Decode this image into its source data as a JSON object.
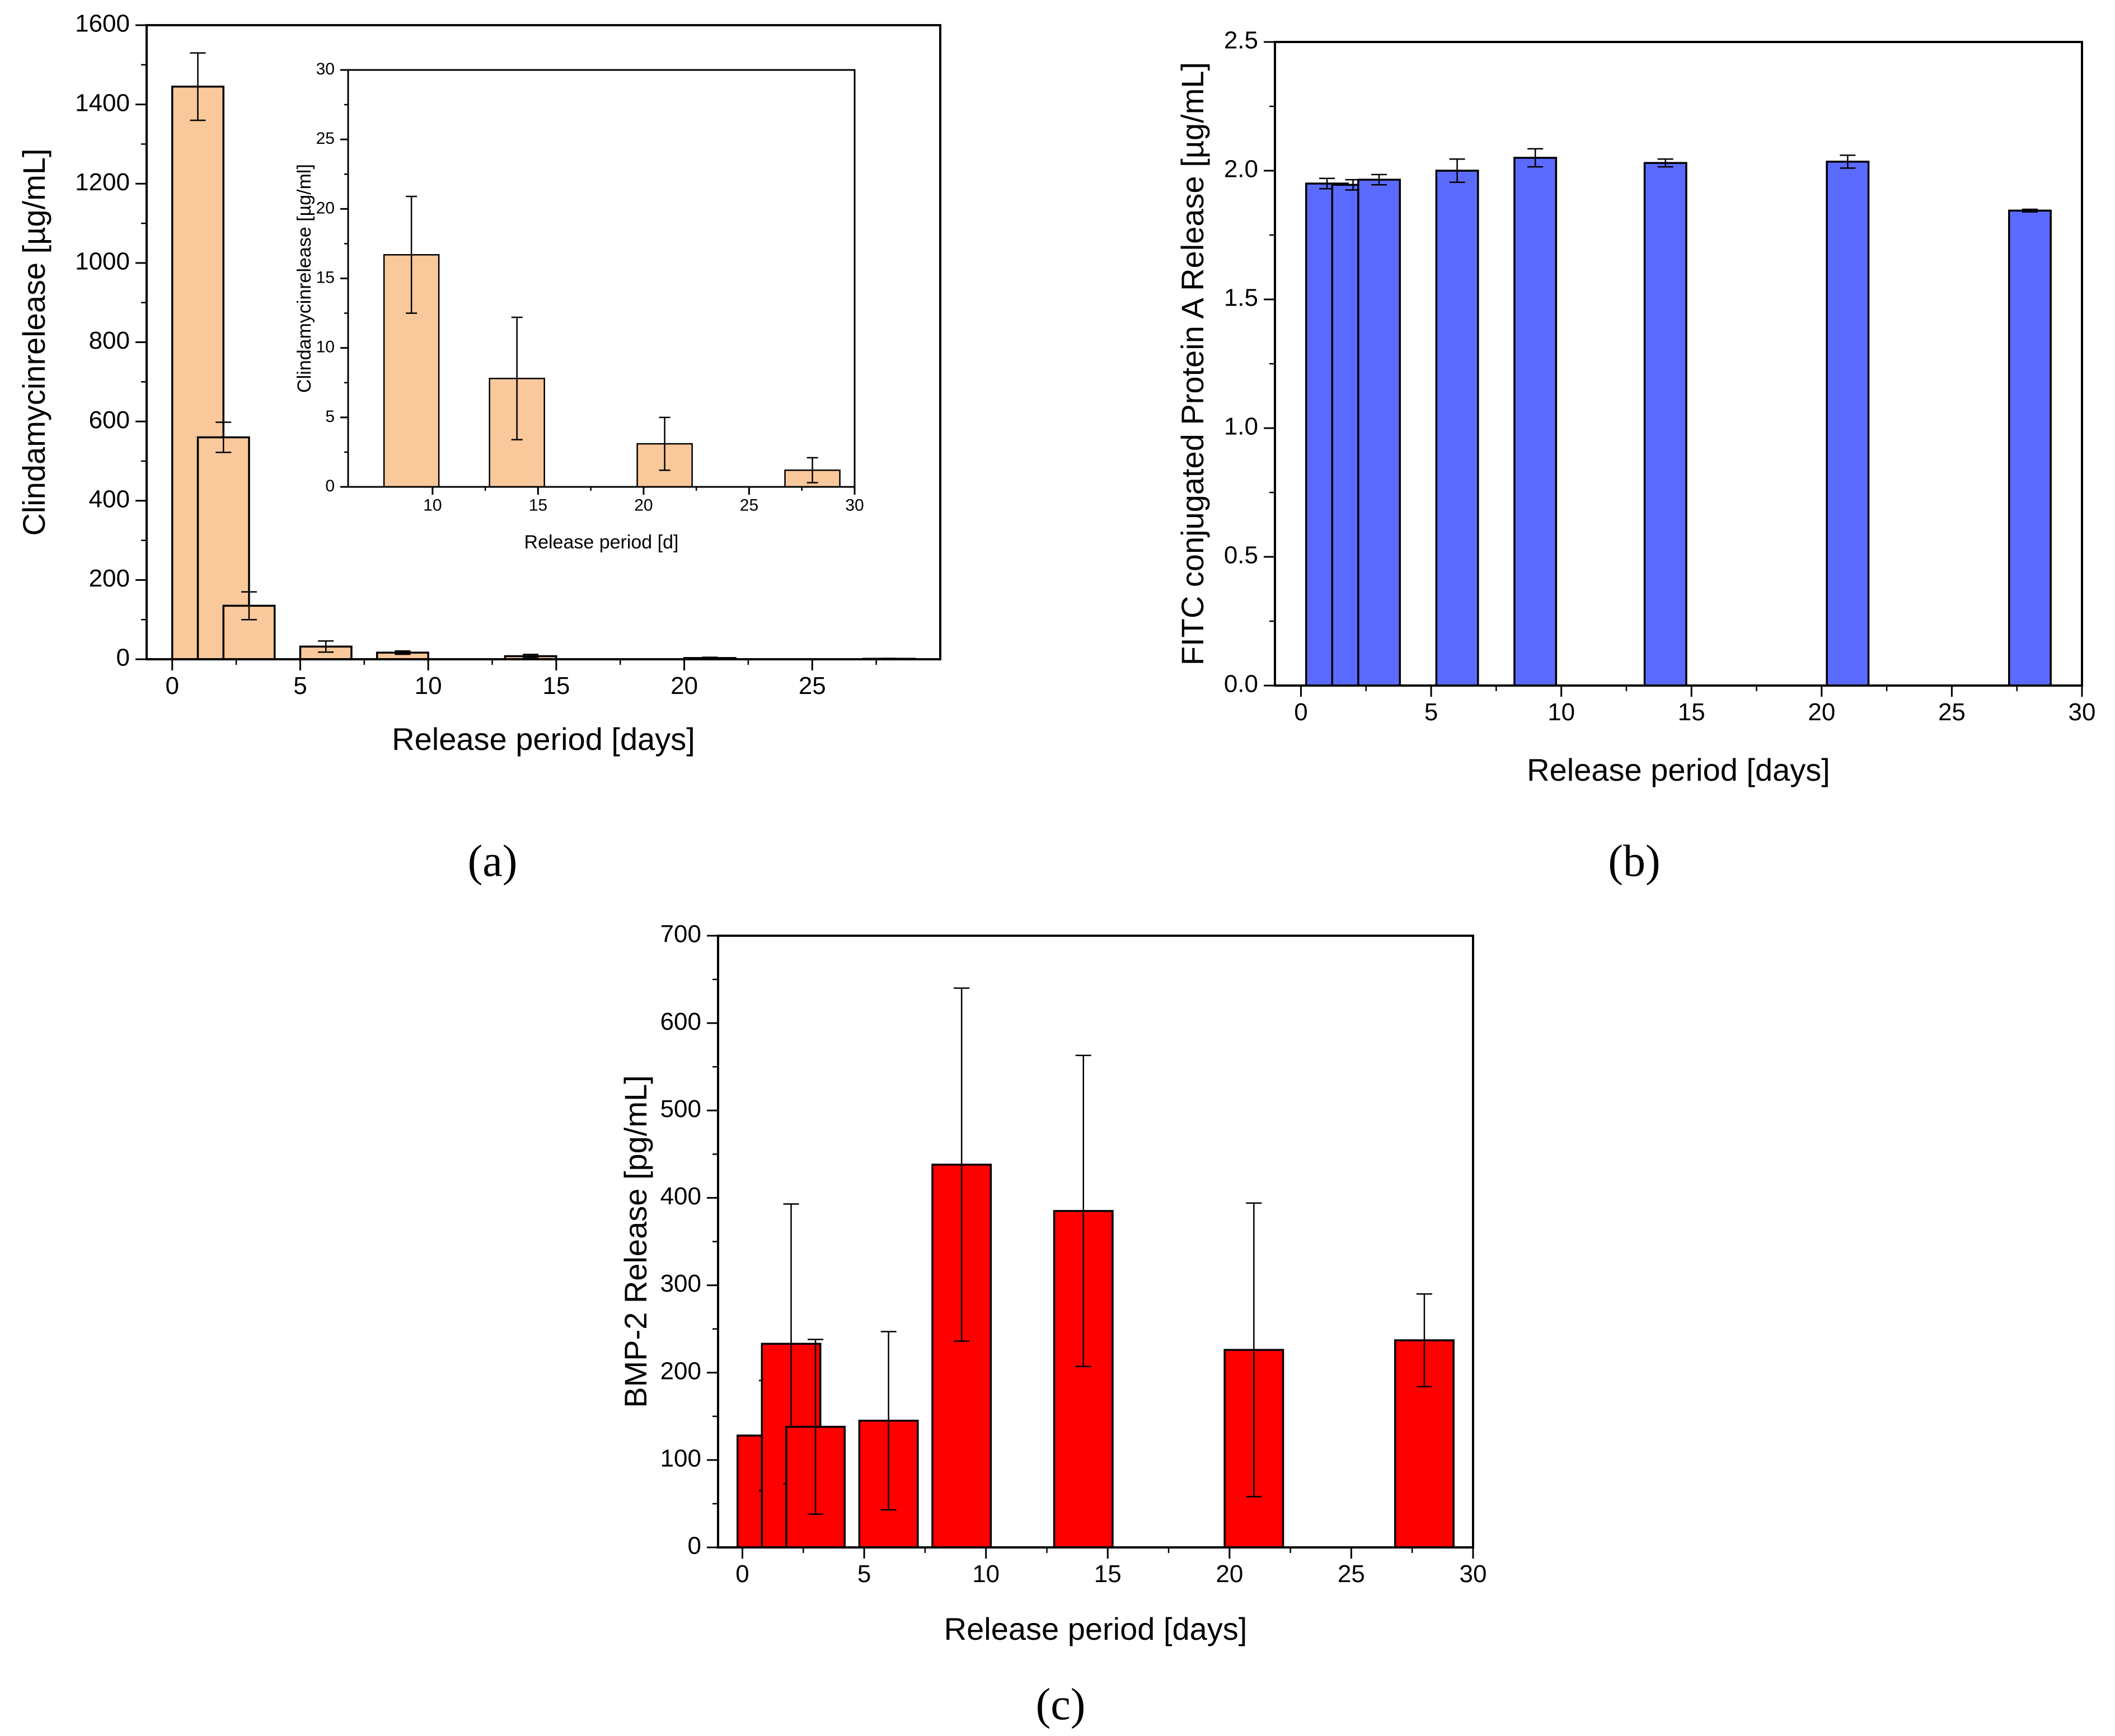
{
  "chart_data": [
    {
      "id": "a",
      "type": "bar",
      "panel_label": "(a)",
      "xlabel": "Release period [days]",
      "ylabel": "Clindamycinrelease [µg/mL]",
      "xlim": [
        -1,
        30
      ],
      "ylim": [
        0,
        1600
      ],
      "xticks": [
        0,
        5,
        10,
        15,
        20,
        25
      ],
      "yticks": [
        0,
        200,
        400,
        600,
        800,
        1000,
        1200,
        1400,
        1600
      ],
      "bar_color": "#F9C89B",
      "bars": [
        {
          "x": 1,
          "width": 2,
          "value": 1445,
          "error": 85
        },
        {
          "x": 2,
          "width": 2,
          "value": 560,
          "error": 38
        },
        {
          "x": 3,
          "width": 2,
          "value": 135,
          "error": 35
        },
        {
          "x": 6,
          "width": 2,
          "value": 32,
          "error": 14
        },
        {
          "x": 9,
          "width": 2,
          "value": 16.7,
          "error": 4.2
        },
        {
          "x": 14,
          "width": 2,
          "value": 7.8,
          "error": 4.4
        },
        {
          "x": 21,
          "width": 2,
          "value": 3.1,
          "error": 1.9
        },
        {
          "x": 28,
          "width": 2,
          "value": 1.2,
          "error": 0.9
        }
      ],
      "inset": {
        "type": "bar",
        "xlabel": "Release period [d]",
        "ylabel": "Clindamycinrelease [µg/ml]",
        "xlim": [
          6,
          30
        ],
        "ylim": [
          0,
          30
        ],
        "xticks": [
          10,
          15,
          20,
          25,
          30
        ],
        "yticks": [
          0,
          5,
          10,
          15,
          20,
          25,
          30
        ],
        "bars": [
          {
            "x": 9,
            "width": 2.6,
            "value": 16.7,
            "error": 4.2
          },
          {
            "x": 14,
            "width": 2.6,
            "value": 7.8,
            "error": 4.4
          },
          {
            "x": 21,
            "width": 2.6,
            "value": 3.1,
            "error": 1.9
          },
          {
            "x": 28,
            "width": 2.6,
            "value": 1.2,
            "error": 0.9
          }
        ]
      }
    },
    {
      "id": "b",
      "type": "bar",
      "panel_label": "(b)",
      "xlabel": "Release period [days]",
      "ylabel": "FITC conjugated Protein A Release [µg/mL]",
      "xlim": [
        -1,
        30
      ],
      "ylim": [
        0,
        2.5
      ],
      "xticks": [
        0,
        5,
        10,
        15,
        20,
        25,
        30
      ],
      "yticks": [
        "0.0",
        "0.5",
        "1.0",
        "1.5",
        "2.0",
        "2.5"
      ],
      "bar_color": "#5B6BFF",
      "bars": [
        {
          "x": 1,
          "width": 1.6,
          "value": 1.95,
          "error": 0.02
        },
        {
          "x": 2,
          "width": 1.6,
          "value": 1.945,
          "error": 0.02
        },
        {
          "x": 3,
          "width": 1.6,
          "value": 1.965,
          "error": 0.02
        },
        {
          "x": 6,
          "width": 1.6,
          "value": 2.0,
          "error": 0.045
        },
        {
          "x": 9,
          "width": 1.6,
          "value": 2.05,
          "error": 0.035
        },
        {
          "x": 14,
          "width": 1.6,
          "value": 2.03,
          "error": 0.015
        },
        {
          "x": 21,
          "width": 1.6,
          "value": 2.035,
          "error": 0.025
        },
        {
          "x": 28,
          "width": 1.6,
          "value": 1.845,
          "error": 0.005
        }
      ]
    },
    {
      "id": "c",
      "type": "bar",
      "panel_label": "(c)",
      "xlabel": "Release period [days]",
      "ylabel": "BMP-2 Release [pg/mL]",
      "xlim": [
        -1,
        30
      ],
      "ylim": [
        0,
        700
      ],
      "xticks": [
        0,
        5,
        10,
        15,
        20,
        25,
        30
      ],
      "yticks": [
        0,
        100,
        200,
        300,
        400,
        500,
        600,
        700
      ],
      "bar_color": "#FF0000",
      "bars": [
        {
          "x": 1,
          "width": 2.4,
          "value": 128,
          "error": 63
        },
        {
          "x": 2,
          "width": 2.4,
          "value": 233,
          "error": 160
        },
        {
          "x": 3,
          "width": 2.4,
          "value": 138,
          "error": 100
        },
        {
          "x": 6,
          "width": 2.4,
          "value": 145,
          "error": 102
        },
        {
          "x": 9,
          "width": 2.4,
          "value": 438,
          "error": 202
        },
        {
          "x": 14,
          "width": 2.4,
          "value": 385,
          "error": 178
        },
        {
          "x": 21,
          "width": 2.4,
          "value": 226,
          "error": 168
        },
        {
          "x": 28,
          "width": 2.4,
          "value": 237,
          "error": 53
        }
      ]
    }
  ]
}
